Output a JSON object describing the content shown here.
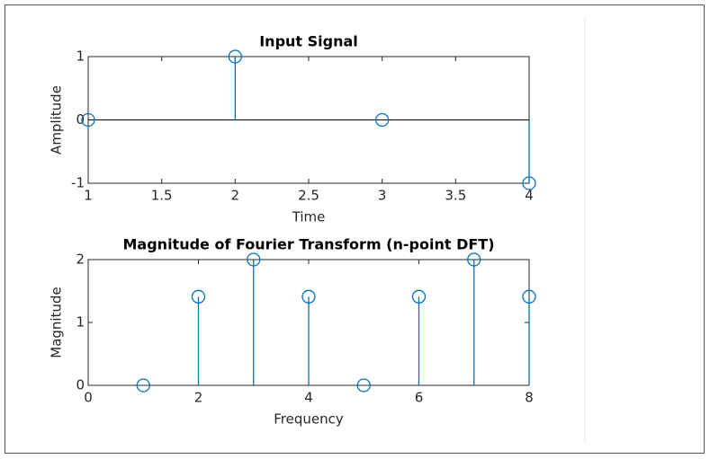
{
  "chart_data": [
    {
      "type": "stem",
      "title": "Input Signal",
      "x_label": "Time",
      "y_label": "Amplitude",
      "x": [
        1,
        2,
        3,
        4
      ],
      "values": [
        0,
        1,
        0,
        -1
      ],
      "color": "#0072bd",
      "xlim": [
        1,
        4
      ],
      "ylim": [
        -1,
        1
      ],
      "xticks": [
        1,
        1.5,
        2,
        2.5,
        3,
        3.5,
        4
      ],
      "yticks": [
        -1,
        0,
        1
      ]
    },
    {
      "type": "stem",
      "title": "Magnitude of Fourier Transform (n-point DFT)",
      "x_label": "Frequency",
      "y_label": "Magnitude",
      "x": [
        1,
        2,
        3,
        4,
        5,
        6,
        7,
        8
      ],
      "values": [
        0,
        1.41,
        2,
        1.41,
        0,
        1.41,
        2,
        1.41
      ],
      "color": "#0072bd",
      "xlim": [
        0,
        8
      ],
      "ylim": [
        0,
        2
      ],
      "xticks": [
        0,
        2,
        4,
        6,
        8
      ],
      "yticks": [
        0,
        1,
        2
      ]
    }
  ]
}
